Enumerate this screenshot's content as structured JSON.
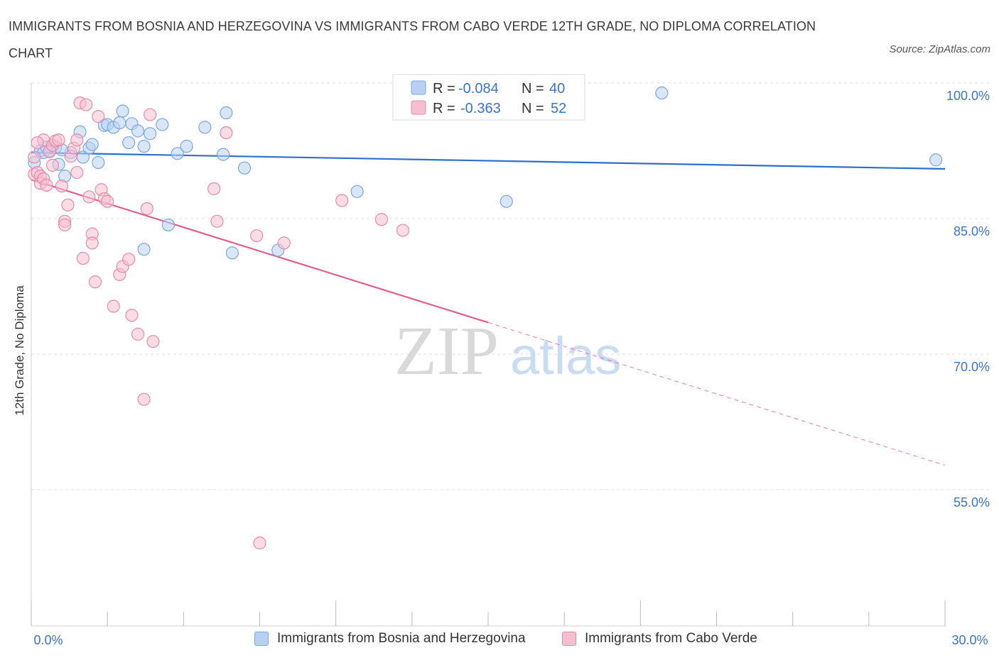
{
  "title": "IMMIGRANTS FROM BOSNIA AND HERZEGOVINA VS IMMIGRANTS FROM CABO VERDE 12TH GRADE, NO DIPLOMA CORRELATION CHART",
  "source": "Source: ZipAtlas.com",
  "watermark": {
    "zip": "ZIP",
    "atlas": "atlas"
  },
  "colors": {
    "blue_fill": "#b8d1f3",
    "blue_stroke": "#7aa7e0",
    "blue_line": "#2e6fcc",
    "pink_fill": "#f5bfd0",
    "pink_stroke": "#e88aa9",
    "pink_line": "#e0608c",
    "tick_text": "#3a74c9",
    "grid": "#dddddd"
  },
  "legend": {
    "rows": [
      {
        "r_label": "R =",
        "r_value": "-0.084",
        "n_label": "N =",
        "n_value": "40"
      },
      {
        "r_label": "R =",
        "r_value": "-0.363",
        "n_label": "N =",
        "n_value": "52"
      }
    ]
  },
  "chart_data": {
    "type": "scatter",
    "title": "IMMIGRANTS FROM BOSNIA AND HERZEGOVINA VS IMMIGRANTS FROM CABO VERDE 12TH GRADE, NO DIPLOMA CORRELATION CHART",
    "xlabel": "",
    "ylabel": "12th Grade, No Diploma",
    "xlim": [
      0,
      30
    ],
    "ylim": [
      40,
      100
    ],
    "x_tick_labels": [
      "0.0%",
      "30.0%"
    ],
    "y_ticks": [
      {
        "value": 100,
        "label": "100.0%"
      },
      {
        "value": 85,
        "label": "85.0%"
      },
      {
        "value": 70,
        "label": "70.0%"
      },
      {
        "value": 55,
        "label": "55.0%"
      }
    ],
    "grid": true,
    "legend_position": "top-center",
    "series": [
      {
        "name": "Immigrants from Bosnia and Herzegovina",
        "color": "#7aa7e0",
        "trend": {
          "x": [
            0,
            30
          ],
          "y": [
            92.3,
            90.5
          ],
          "style": "solid"
        },
        "points": [
          [
            0.1,
            91.2
          ],
          [
            0.3,
            92.5
          ],
          [
            0.4,
            92.3
          ],
          [
            0.6,
            92.5
          ],
          [
            0.8,
            92.9
          ],
          [
            0.9,
            91.0
          ],
          [
            1.1,
            89.7
          ],
          [
            1.3,
            92.3
          ],
          [
            1.6,
            94.6
          ],
          [
            1.7,
            91.8
          ],
          [
            1.9,
            92.8
          ],
          [
            2.0,
            93.2
          ],
          [
            2.2,
            91.2
          ],
          [
            2.4,
            95.3
          ],
          [
            2.5,
            95.4
          ],
          [
            2.7,
            95.1
          ],
          [
            2.9,
            95.6
          ],
          [
            3.0,
            96.9
          ],
          [
            3.2,
            93.4
          ],
          [
            3.3,
            95.5
          ],
          [
            3.5,
            94.7
          ],
          [
            3.7,
            93.0
          ],
          [
            3.9,
            94.4
          ],
          [
            4.3,
            95.4
          ],
          [
            4.5,
            84.3
          ],
          [
            4.8,
            92.2
          ],
          [
            5.1,
            93.0
          ],
          [
            5.7,
            95.1
          ],
          [
            6.3,
            92.1
          ],
          [
            6.4,
            96.7
          ],
          [
            7.0,
            90.6
          ],
          [
            3.7,
            81.6
          ],
          [
            6.6,
            81.2
          ],
          [
            8.1,
            81.5
          ],
          [
            10.7,
            88.0
          ],
          [
            15.6,
            86.9
          ],
          [
            20.7,
            98.9
          ],
          [
            29.7,
            91.5
          ],
          [
            0.5,
            92.9
          ],
          [
            1.0,
            92.6
          ]
        ]
      },
      {
        "name": "Immigrants from Cabo Verde",
        "color": "#e88aa9",
        "trend": {
          "x": [
            0,
            15
          ],
          "y": [
            89.3,
            73.5
          ],
          "style": "solid",
          "extended": {
            "x": [
              15,
              30
            ],
            "y": [
              73.5,
              57.7
            ],
            "style": "dashed"
          }
        },
        "points": [
          [
            0.1,
            91.8
          ],
          [
            0.1,
            89.9
          ],
          [
            0.2,
            90.1
          ],
          [
            0.3,
            89.7
          ],
          [
            0.3,
            88.9
          ],
          [
            0.4,
            89.4
          ],
          [
            0.4,
            93.7
          ],
          [
            0.5,
            88.7
          ],
          [
            0.6,
            92.4
          ],
          [
            0.7,
            93.1
          ],
          [
            0.7,
            90.9
          ],
          [
            0.8,
            93.6
          ],
          [
            0.9,
            93.7
          ],
          [
            1.0,
            88.6
          ],
          [
            1.1,
            84.7
          ],
          [
            1.1,
            84.3
          ],
          [
            1.2,
            86.5
          ],
          [
            1.3,
            91.9
          ],
          [
            1.4,
            92.8
          ],
          [
            1.5,
            90.1
          ],
          [
            1.5,
            93.7
          ],
          [
            1.7,
            80.6
          ],
          [
            1.6,
            97.8
          ],
          [
            1.8,
            97.6
          ],
          [
            1.9,
            87.4
          ],
          [
            2.0,
            83.3
          ],
          [
            2.0,
            82.3
          ],
          [
            2.1,
            78.0
          ],
          [
            2.2,
            96.3
          ],
          [
            2.3,
            88.2
          ],
          [
            2.4,
            87.2
          ],
          [
            2.5,
            86.9
          ],
          [
            2.7,
            75.3
          ],
          [
            2.9,
            78.8
          ],
          [
            3.0,
            79.7
          ],
          [
            3.2,
            80.5
          ],
          [
            3.3,
            74.3
          ],
          [
            3.5,
            72.2
          ],
          [
            3.8,
            86.1
          ],
          [
            3.9,
            96.5
          ],
          [
            4.0,
            71.4
          ],
          [
            3.7,
            65.0
          ],
          [
            6.1,
            84.7
          ],
          [
            6.0,
            88.3
          ],
          [
            6.4,
            94.5
          ],
          [
            7.4,
            83.1
          ],
          [
            8.3,
            82.3
          ],
          [
            10.2,
            87.0
          ],
          [
            11.5,
            84.9
          ],
          [
            12.2,
            83.7
          ],
          [
            7.5,
            49.1
          ],
          [
            0.2,
            93.4
          ]
        ]
      }
    ]
  },
  "bottom_legend": {
    "items": [
      {
        "label": "Immigrants from Bosnia and Herzegovina"
      },
      {
        "label": "Immigrants from Cabo Verde"
      }
    ]
  }
}
